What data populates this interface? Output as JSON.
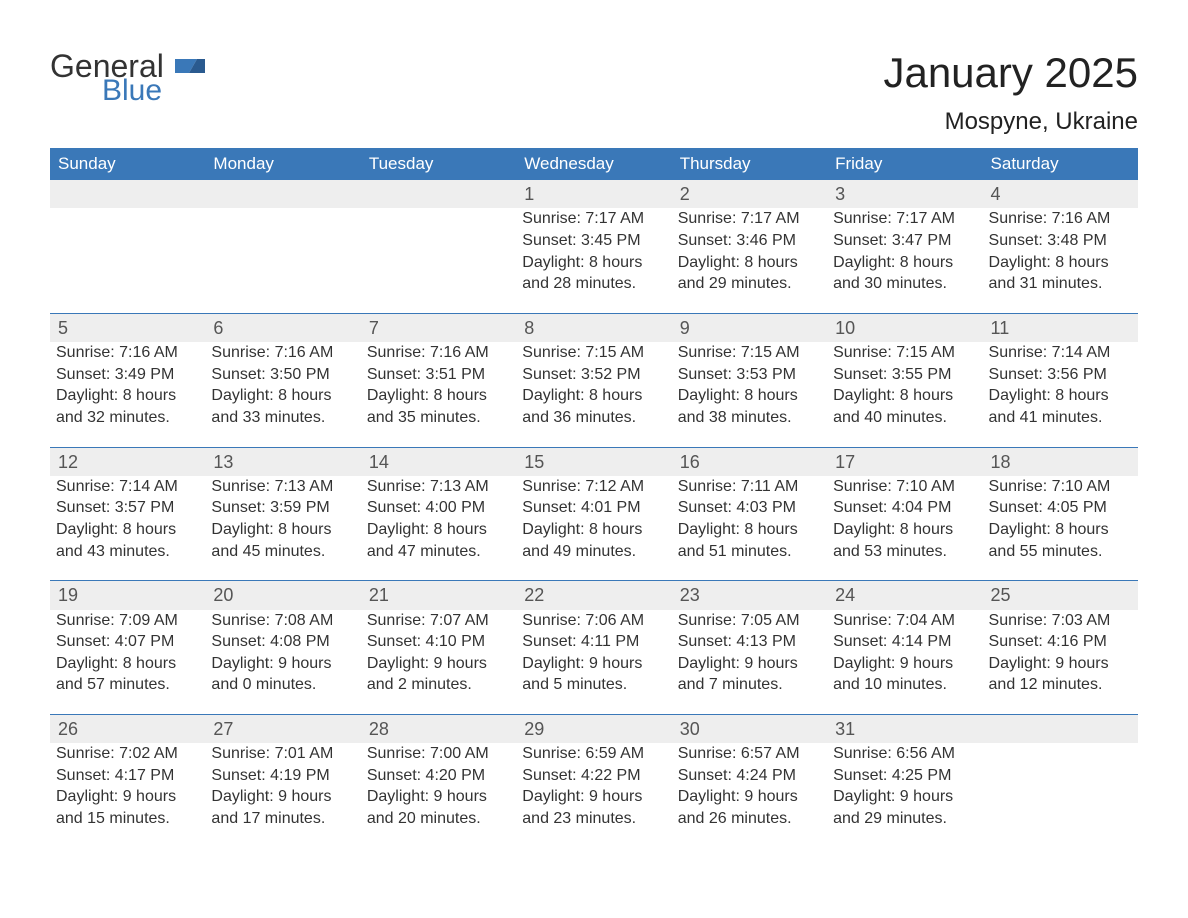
{
  "logo": {
    "word1": "General",
    "word2": "Blue"
  },
  "title": "January 2025",
  "location": "Mospyne, Ukraine",
  "colors": {
    "accent": "#3a78b8",
    "header_text": "#ffffff",
    "daynum_bg": "#eeeeee",
    "body_text": "#333333",
    "page_bg": "#ffffff"
  },
  "weekdays": [
    "Sunday",
    "Monday",
    "Tuesday",
    "Wednesday",
    "Thursday",
    "Friday",
    "Saturday"
  ],
  "weeks": [
    [
      null,
      null,
      null,
      {
        "n": "1",
        "sr": "Sunrise: 7:17 AM",
        "ss": "Sunset: 3:45 PM",
        "d1": "Daylight: 8 hours",
        "d2": "and 28 minutes."
      },
      {
        "n": "2",
        "sr": "Sunrise: 7:17 AM",
        "ss": "Sunset: 3:46 PM",
        "d1": "Daylight: 8 hours",
        "d2": "and 29 minutes."
      },
      {
        "n": "3",
        "sr": "Sunrise: 7:17 AM",
        "ss": "Sunset: 3:47 PM",
        "d1": "Daylight: 8 hours",
        "d2": "and 30 minutes."
      },
      {
        "n": "4",
        "sr": "Sunrise: 7:16 AM",
        "ss": "Sunset: 3:48 PM",
        "d1": "Daylight: 8 hours",
        "d2": "and 31 minutes."
      }
    ],
    [
      {
        "n": "5",
        "sr": "Sunrise: 7:16 AM",
        "ss": "Sunset: 3:49 PM",
        "d1": "Daylight: 8 hours",
        "d2": "and 32 minutes."
      },
      {
        "n": "6",
        "sr": "Sunrise: 7:16 AM",
        "ss": "Sunset: 3:50 PM",
        "d1": "Daylight: 8 hours",
        "d2": "and 33 minutes."
      },
      {
        "n": "7",
        "sr": "Sunrise: 7:16 AM",
        "ss": "Sunset: 3:51 PM",
        "d1": "Daylight: 8 hours",
        "d2": "and 35 minutes."
      },
      {
        "n": "8",
        "sr": "Sunrise: 7:15 AM",
        "ss": "Sunset: 3:52 PM",
        "d1": "Daylight: 8 hours",
        "d2": "and 36 minutes."
      },
      {
        "n": "9",
        "sr": "Sunrise: 7:15 AM",
        "ss": "Sunset: 3:53 PM",
        "d1": "Daylight: 8 hours",
        "d2": "and 38 minutes."
      },
      {
        "n": "10",
        "sr": "Sunrise: 7:15 AM",
        "ss": "Sunset: 3:55 PM",
        "d1": "Daylight: 8 hours",
        "d2": "and 40 minutes."
      },
      {
        "n": "11",
        "sr": "Sunrise: 7:14 AM",
        "ss": "Sunset: 3:56 PM",
        "d1": "Daylight: 8 hours",
        "d2": "and 41 minutes."
      }
    ],
    [
      {
        "n": "12",
        "sr": "Sunrise: 7:14 AM",
        "ss": "Sunset: 3:57 PM",
        "d1": "Daylight: 8 hours",
        "d2": "and 43 minutes."
      },
      {
        "n": "13",
        "sr": "Sunrise: 7:13 AM",
        "ss": "Sunset: 3:59 PM",
        "d1": "Daylight: 8 hours",
        "d2": "and 45 minutes."
      },
      {
        "n": "14",
        "sr": "Sunrise: 7:13 AM",
        "ss": "Sunset: 4:00 PM",
        "d1": "Daylight: 8 hours",
        "d2": "and 47 minutes."
      },
      {
        "n": "15",
        "sr": "Sunrise: 7:12 AM",
        "ss": "Sunset: 4:01 PM",
        "d1": "Daylight: 8 hours",
        "d2": "and 49 minutes."
      },
      {
        "n": "16",
        "sr": "Sunrise: 7:11 AM",
        "ss": "Sunset: 4:03 PM",
        "d1": "Daylight: 8 hours",
        "d2": "and 51 minutes."
      },
      {
        "n": "17",
        "sr": "Sunrise: 7:10 AM",
        "ss": "Sunset: 4:04 PM",
        "d1": "Daylight: 8 hours",
        "d2": "and 53 minutes."
      },
      {
        "n": "18",
        "sr": "Sunrise: 7:10 AM",
        "ss": "Sunset: 4:05 PM",
        "d1": "Daylight: 8 hours",
        "d2": "and 55 minutes."
      }
    ],
    [
      {
        "n": "19",
        "sr": "Sunrise: 7:09 AM",
        "ss": "Sunset: 4:07 PM",
        "d1": "Daylight: 8 hours",
        "d2": "and 57 minutes."
      },
      {
        "n": "20",
        "sr": "Sunrise: 7:08 AM",
        "ss": "Sunset: 4:08 PM",
        "d1": "Daylight: 9 hours",
        "d2": "and 0 minutes."
      },
      {
        "n": "21",
        "sr": "Sunrise: 7:07 AM",
        "ss": "Sunset: 4:10 PM",
        "d1": "Daylight: 9 hours",
        "d2": "and 2 minutes."
      },
      {
        "n": "22",
        "sr": "Sunrise: 7:06 AM",
        "ss": "Sunset: 4:11 PM",
        "d1": "Daylight: 9 hours",
        "d2": "and 5 minutes."
      },
      {
        "n": "23",
        "sr": "Sunrise: 7:05 AM",
        "ss": "Sunset: 4:13 PM",
        "d1": "Daylight: 9 hours",
        "d2": "and 7 minutes."
      },
      {
        "n": "24",
        "sr": "Sunrise: 7:04 AM",
        "ss": "Sunset: 4:14 PM",
        "d1": "Daylight: 9 hours",
        "d2": "and 10 minutes."
      },
      {
        "n": "25",
        "sr": "Sunrise: 7:03 AM",
        "ss": "Sunset: 4:16 PM",
        "d1": "Daylight: 9 hours",
        "d2": "and 12 minutes."
      }
    ],
    [
      {
        "n": "26",
        "sr": "Sunrise: 7:02 AM",
        "ss": "Sunset: 4:17 PM",
        "d1": "Daylight: 9 hours",
        "d2": "and 15 minutes."
      },
      {
        "n": "27",
        "sr": "Sunrise: 7:01 AM",
        "ss": "Sunset: 4:19 PM",
        "d1": "Daylight: 9 hours",
        "d2": "and 17 minutes."
      },
      {
        "n": "28",
        "sr": "Sunrise: 7:00 AM",
        "ss": "Sunset: 4:20 PM",
        "d1": "Daylight: 9 hours",
        "d2": "and 20 minutes."
      },
      {
        "n": "29",
        "sr": "Sunrise: 6:59 AM",
        "ss": "Sunset: 4:22 PM",
        "d1": "Daylight: 9 hours",
        "d2": "and 23 minutes."
      },
      {
        "n": "30",
        "sr": "Sunrise: 6:57 AM",
        "ss": "Sunset: 4:24 PM",
        "d1": "Daylight: 9 hours",
        "d2": "and 26 minutes."
      },
      {
        "n": "31",
        "sr": "Sunrise: 6:56 AM",
        "ss": "Sunset: 4:25 PM",
        "d1": "Daylight: 9 hours",
        "d2": "and 29 minutes."
      },
      null
    ]
  ]
}
